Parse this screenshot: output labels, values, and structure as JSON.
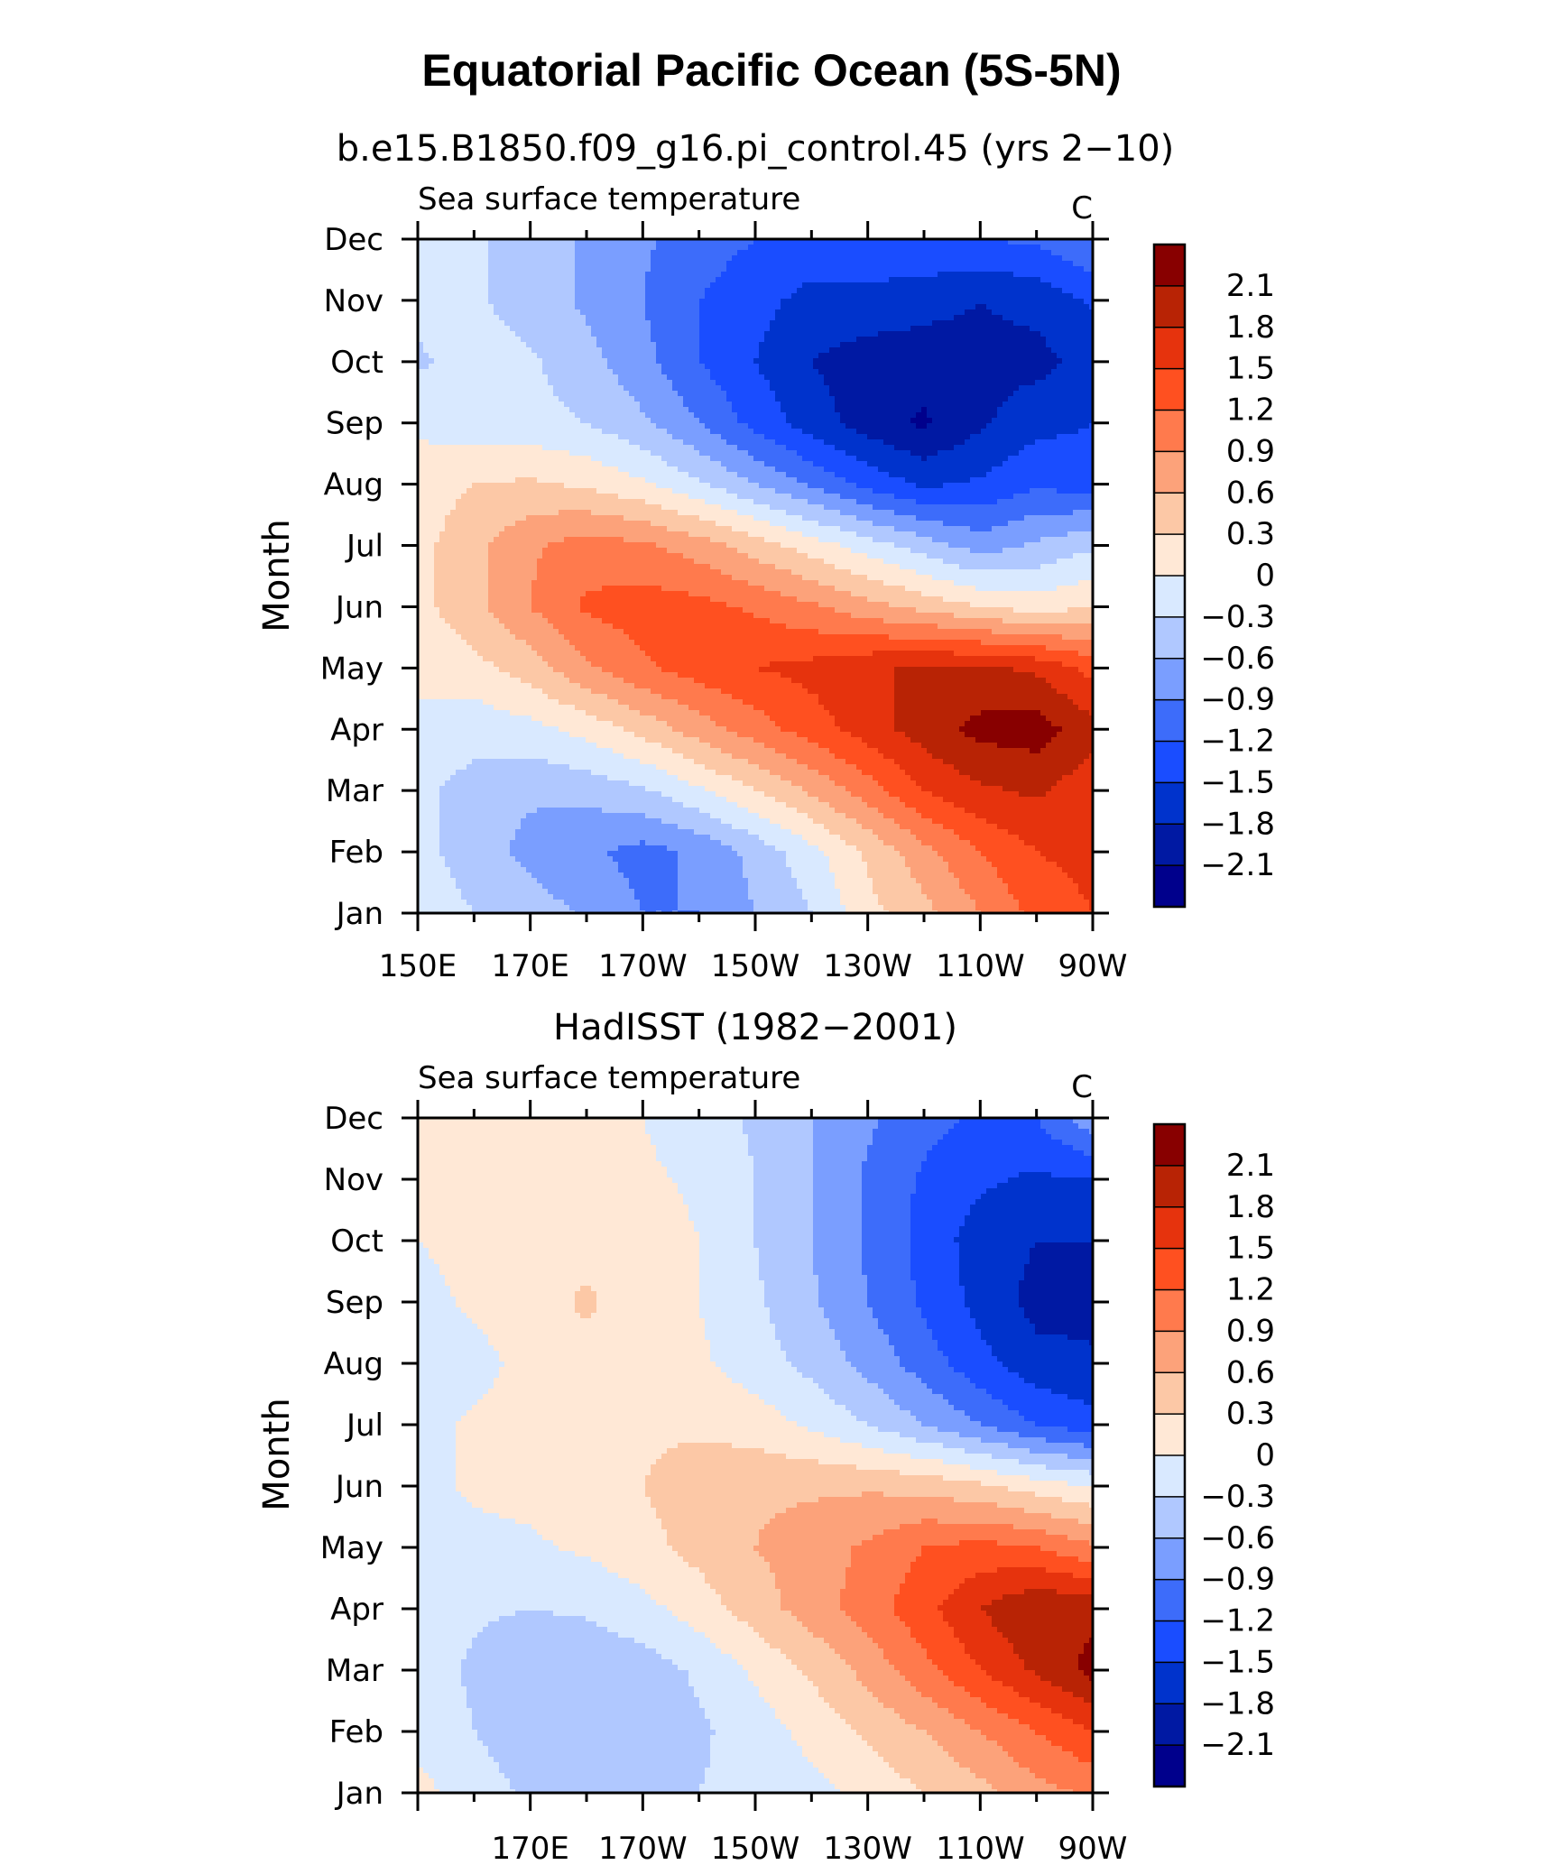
{
  "figure_title": "Equatorial Pacific Ocean (5S-5N)",
  "colors": {
    "levels": [
      "#00008c",
      "#0019a3",
      "#0033cc",
      "#1a4dff",
      "#3d6cfa",
      "#7a9eff",
      "#b0c8ff",
      "#d9e9ff",
      "#ffe8d6",
      "#fcc8a6",
      "#fca27a",
      "#ff7a4d",
      "#ff5020",
      "#e6330d",
      "#b82305",
      "#880000"
    ]
  },
  "chart_data": [
    {
      "type": "heatmap",
      "title": "b.e15.B1850.f09_g16.pi_control.45 (yrs 2−10)",
      "left_string": "Sea surface temperature",
      "right_string": "C",
      "xlabel": "",
      "ylabel": "Month",
      "x_tick_labels": [
        "150E",
        "170E",
        "170W",
        "150W",
        "130W",
        "110W",
        "90W"
      ],
      "x_ticks_lon": [
        150,
        170,
        190,
        210,
        230,
        250,
        270
      ],
      "xlim": [
        150,
        270
      ],
      "y_tick_labels": [
        "Jan",
        "Feb",
        "Mar",
        "Apr",
        "May",
        "Jun",
        "Jul",
        "Aug",
        "Sep",
        "Oct",
        "Nov",
        "Dec"
      ],
      "colorbar_labels": [
        "2.1",
        "1.8",
        "1.5",
        "1.2",
        "0.9",
        "0.6",
        "0.3",
        "0",
        "−0.3",
        "−0.6",
        "−0.9",
        "−1.2",
        "−1.5",
        "−1.8",
        "−2.1"
      ],
      "contour_levels": [
        -2.1,
        -1.8,
        -1.5,
        -1.2,
        -0.9,
        -0.6,
        -0.3,
        0,
        0.3,
        0.6,
        0.9,
        1.2,
        1.5,
        1.8,
        2.1
      ],
      "lon": [
        150,
        160,
        170,
        180,
        190,
        200,
        210,
        220,
        230,
        240,
        250,
        260,
        270
      ],
      "z": [
        [
          -0.1,
          -0.3,
          -0.45,
          -0.65,
          -0.9,
          -0.9,
          -0.6,
          -0.3,
          0.2,
          0.5,
          0.9,
          1.3,
          1.5
        ],
        [
          -0.2,
          -0.45,
          -0.7,
          -0.85,
          -1.0,
          -0.85,
          -0.5,
          -0.1,
          0.35,
          0.8,
          1.2,
          1.5,
          1.6
        ],
        [
          -0.25,
          -0.4,
          -0.55,
          -0.5,
          -0.35,
          -0.05,
          0.3,
          0.65,
          1.05,
          1.5,
          1.75,
          1.85,
          1.6
        ],
        [
          -0.1,
          -0.2,
          -0.1,
          0.1,
          0.4,
          0.75,
          1.05,
          1.35,
          1.65,
          1.95,
          2.2,
          2.25,
          1.9
        ],
        [
          0.1,
          0.2,
          0.45,
          0.85,
          1.15,
          1.35,
          1.5,
          1.6,
          1.75,
          1.85,
          1.85,
          1.75,
          1.4
        ],
        [
          0.2,
          0.5,
          0.9,
          1.25,
          1.35,
          1.3,
          1.15,
          0.95,
          0.7,
          0.5,
          0.3,
          0.15,
          0.3
        ],
        [
          0.2,
          0.5,
          0.85,
          1.05,
          0.95,
          0.75,
          0.45,
          0.15,
          -0.15,
          -0.45,
          -0.75,
          -0.55,
          -0.35
        ],
        [
          0.15,
          0.3,
          0.35,
          0.25,
          0.05,
          -0.25,
          -0.6,
          -0.95,
          -1.3,
          -1.55,
          -1.45,
          -1.25,
          -1.35
        ],
        [
          -0.05,
          -0.2,
          -0.2,
          -0.3,
          -0.55,
          -0.9,
          -1.3,
          -1.65,
          -1.95,
          -2.15,
          -1.85,
          -1.6,
          -1.5
        ],
        [
          -0.35,
          -0.15,
          -0.25,
          -0.5,
          -0.8,
          -1.2,
          -1.5,
          -1.8,
          -1.95,
          -1.95,
          -1.9,
          -1.9,
          -1.7
        ],
        [
          -0.2,
          -0.25,
          -0.45,
          -0.65,
          -0.9,
          -1.2,
          -1.4,
          -1.6,
          -1.6,
          -1.7,
          -1.8,
          -1.7,
          -1.45
        ],
        [
          -0.1,
          -0.25,
          -0.45,
          -0.65,
          -0.85,
          -1.05,
          -1.2,
          -1.3,
          -1.25,
          -1.2,
          -1.2,
          -1.15,
          -0.9
        ]
      ]
    },
    {
      "type": "heatmap",
      "title": "HadISST (1982−2001)",
      "left_string": "Sea surface temperature",
      "right_string": "C",
      "xlabel": "",
      "ylabel": "Month",
      "x_tick_labels": [
        "170E",
        "170W",
        "150W",
        "130W",
        "110W",
        "90W"
      ],
      "x_ticks_lon": [
        170,
        190,
        210,
        230,
        250,
        270
      ],
      "xlim": [
        150,
        270
      ],
      "y_tick_labels": [
        "Jan",
        "Feb",
        "Mar",
        "Apr",
        "May",
        "Jun",
        "Jul",
        "Aug",
        "Sep",
        "Oct",
        "Nov",
        "Dec"
      ],
      "colorbar_labels": [
        "2.1",
        "1.8",
        "1.5",
        "1.2",
        "0.9",
        "0.6",
        "0.3",
        "0",
        "−0.3",
        "−0.6",
        "−0.9",
        "−1.2",
        "−1.5",
        "−1.8",
        "−2.1"
      ],
      "contour_levels": [
        -2.1,
        -1.8,
        -1.5,
        -1.2,
        -0.9,
        -0.6,
        -0.3,
        0,
        0.3,
        0.6,
        0.9,
        1.2,
        1.5,
        1.8,
        2.1
      ],
      "lon": [
        150,
        160,
        170,
        180,
        190,
        200,
        210,
        220,
        230,
        240,
        250,
        260,
        270
      ],
      "z": [
        [
          0.1,
          -0.15,
          -0.35,
          -0.45,
          -0.4,
          -0.3,
          -0.2,
          -0.1,
          0.1,
          0.3,
          0.5,
          0.8,
          0.95
        ],
        [
          -0.1,
          -0.3,
          -0.5,
          -0.55,
          -0.5,
          -0.35,
          -0.15,
          0.1,
          0.35,
          0.6,
          0.9,
          1.2,
          1.5
        ],
        [
          -0.15,
          -0.35,
          -0.55,
          -0.55,
          -0.45,
          -0.25,
          0.05,
          0.35,
          0.7,
          1.1,
          1.5,
          1.85,
          2.2
        ],
        [
          -0.1,
          -0.25,
          -0.3,
          -0.25,
          -0.1,
          0.15,
          0.45,
          0.75,
          1.05,
          1.4,
          1.8,
          2.1,
          2.0
        ],
        [
          -0.05,
          -0.1,
          -0.05,
          0.05,
          0.2,
          0.4,
          0.6,
          0.75,
          0.95,
          1.2,
          1.3,
          1.2,
          0.95
        ],
        [
          -0.1,
          0.05,
          0.1,
          0.2,
          0.3,
          0.45,
          0.55,
          0.55,
          0.55,
          0.5,
          0.35,
          0.15,
          0.0
        ],
        [
          -0.1,
          0.05,
          0.1,
          0.15,
          0.25,
          0.25,
          0.15,
          -0.05,
          -0.3,
          -0.6,
          -0.9,
          -1.2,
          -1.4
        ],
        [
          -0.2,
          -0.1,
          0.1,
          0.2,
          0.15,
          0.05,
          -0.15,
          -0.4,
          -0.7,
          -1.05,
          -1.4,
          -1.7,
          -1.75
        ],
        [
          -0.1,
          0.05,
          0.15,
          0.35,
          0.15,
          0.0,
          -0.25,
          -0.55,
          -0.9,
          -1.25,
          -1.6,
          -1.9,
          -1.9
        ],
        [
          0.0,
          0.1,
          0.15,
          0.2,
          0.15,
          0.0,
          -0.3,
          -0.6,
          -0.95,
          -1.3,
          -1.65,
          -1.8,
          -1.8
        ],
        [
          0.05,
          0.1,
          0.15,
          0.1,
          0.05,
          -0.05,
          -0.3,
          -0.6,
          -0.95,
          -1.25,
          -1.45,
          -1.55,
          -1.5
        ],
        [
          0.05,
          0.1,
          0.1,
          0.05,
          0.0,
          -0.15,
          -0.35,
          -0.6,
          -0.85,
          -1.1,
          -1.25,
          -1.2,
          -0.7
        ]
      ]
    }
  ]
}
